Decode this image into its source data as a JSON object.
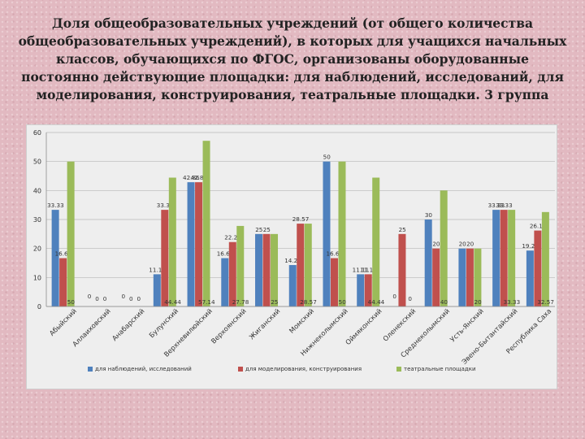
{
  "title": "Доля общеобразовательных учреждений (от общего количества общеобразовательных учреждений), в которых для учащихся начальных классов, обучающихся по ФГОС, организованы оборудованные постоянно действующие площадки: для наблюдений, исследований, для моделирования, конструирования, театральные площадки. 3 группа",
  "chart_data": {
    "type": "bar",
    "ylim": [
      0,
      60
    ],
    "yticks": [
      0,
      10,
      20,
      30,
      40,
      50,
      60
    ],
    "grid": true,
    "legend_position": "bottom",
    "categories": [
      "Абыйский",
      "Аллаиховский",
      "Анабарский",
      "Булунский",
      "Верхневилюйский",
      "Верхоянский",
      "Жиганский",
      "Момский",
      "Нижнеколымский",
      "Оймяконский",
      "Оленекский",
      "Среднеколымский",
      "Усть-Янский",
      "Эвено-Бытантайский",
      "Республика Саха"
    ],
    "series": [
      {
        "name": "для наблюдений, исследований",
        "color": "#4f81bd",
        "values": [
          33.33,
          0,
          0,
          11.11,
          42.86,
          16.67,
          25,
          14.29,
          50,
          11.11,
          0,
          30,
          20,
          33.33,
          19.29
        ],
        "labels": [
          "33.33",
          "0",
          "0",
          "11.11",
          "42.86",
          "16.67",
          "25",
          "14.29",
          "50",
          "11.11",
          "0",
          "30",
          "20",
          "33.33",
          "19.29"
        ]
      },
      {
        "name": "для моделирования, конструирования",
        "color": "#c0504d",
        "values": [
          16.67,
          0,
          0,
          33.33,
          42.86,
          22.22,
          25,
          28.57,
          16.67,
          11.11,
          25,
          20,
          20,
          33.33,
          26.19
        ],
        "labels": [
          "16.67",
          "0",
          "0",
          "33.33",
          "42.86",
          "22.22",
          "25",
          "28.57",
          "16.67",
          "11.11",
          "25",
          "20",
          "20",
          "33.33",
          "26.19"
        ]
      },
      {
        "name": "театральные площадки",
        "color": "#9bbb59",
        "values": [
          50,
          0,
          0,
          44.44,
          57.14,
          27.78,
          25,
          28.57,
          50,
          44.44,
          0,
          40,
          20,
          33.33,
          32.57
        ],
        "labels": [
          "50",
          "0",
          "0",
          "44.44",
          "57.14",
          "27.78",
          "25",
          "28.57",
          "50",
          "44.44",
          "0",
          "40",
          "20",
          "33.33",
          "32.57"
        ]
      }
    ]
  }
}
